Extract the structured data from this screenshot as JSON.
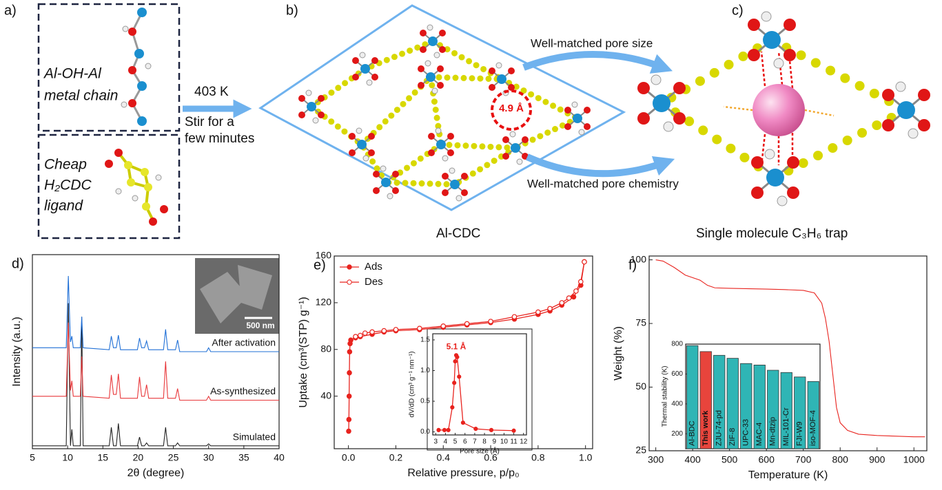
{
  "diagram": {
    "a": {
      "label": "a)",
      "chain": [
        "Al-OH-Al",
        "metal chain"
      ],
      "ligand": [
        "Cheap",
        "H₂CDC",
        "ligand"
      ]
    },
    "arrow": [
      "403 K",
      "Stir for a",
      "few minutes"
    ],
    "b": {
      "label": "b)",
      "pore": "4.9 Å",
      "name": "Al-CDC"
    },
    "c": {
      "label": "c)",
      "top": "Well-matched pore size",
      "bottom": "Well-matched pore chemistry",
      "name": "Single molecule C₃H₆ trap"
    }
  },
  "chart_data": [
    {
      "type": "line",
      "panel": "d)",
      "xlabel": "2θ (degree)",
      "ylabel": "Intensity (a.u.)",
      "inset_label": "500 nm",
      "xlim": [
        5,
        40
      ],
      "xticks": [
        5,
        10,
        15,
        20,
        25,
        30,
        35,
        40
      ],
      "ylim": [
        0,
        100
      ],
      "x": [
        5,
        9.8,
        10.1,
        10.4,
        10.6,
        10.8,
        11.8,
        12.0,
        12.2,
        15.9,
        16.2,
        16.5,
        16.9,
        17.2,
        17.5,
        19.9,
        20.2,
        20.5,
        20.9,
        21.2,
        21.5,
        23.6,
        23.9,
        24.2,
        25.3,
        25.6,
        25.9,
        29.7,
        30.0,
        30.3,
        40
      ],
      "series": [
        {
          "name": "Simulated",
          "color": "#222222",
          "values": [
            1.5,
            1.5,
            75,
            1.5,
            10,
            1.5,
            1.5,
            68,
            1.5,
            1.5,
            11,
            1.5,
            1.5,
            13,
            1.5,
            1.5,
            6,
            1.5,
            1.5,
            3,
            1.5,
            1.5,
            11,
            1.5,
            1.5,
            3,
            1.5,
            1.5,
            2.5,
            1.5,
            1.5
          ]
        },
        {
          "name": "As-synthesized",
          "color": "#e8373a",
          "values": [
            27,
            27,
            65,
            30,
            35,
            27,
            27,
            47.5,
            27,
            26,
            38,
            28,
            28,
            38.6,
            26,
            26,
            37,
            27,
            27,
            33,
            26,
            26,
            45,
            26,
            26,
            31,
            25,
            25,
            27,
            25,
            25
          ]
        },
        {
          "name": "After activation",
          "color": "#1f6fd6",
          "values": [
            52,
            52,
            89,
            55,
            58,
            52,
            52,
            68,
            52,
            51,
            58,
            52,
            52,
            58.5,
            51,
            51,
            57,
            52,
            52,
            55.5,
            51,
            51,
            61.5,
            51,
            51,
            56,
            50,
            50,
            52,
            50,
            50
          ]
        }
      ]
    },
    {
      "type": "scatter",
      "panel": "e)",
      "xlabel": "Relative pressure, p/p₀",
      "ylabel": "Uptake (cm³(STP) g⁻¹)",
      "legend": "upper left",
      "xlim": [
        -0.06,
        1.03
      ],
      "xticks": [
        {
          "value": 0,
          "label": "0.0"
        },
        0.2,
        0.4,
        0.6,
        0.8,
        {
          "value": 1,
          "label": "1.0"
        }
      ],
      "ylim": [
        -5,
        160
      ],
      "yticks": [
        40,
        80,
        120,
        160
      ],
      "series": [
        {
          "name": "Ads",
          "color": "#e8231e",
          "marker": "filled",
          "x": [
            0.001,
            0.002,
            0.003,
            0.004,
            0.005,
            0.007,
            0.01,
            0.03,
            0.05,
            0.1,
            0.15,
            0.2,
            0.3,
            0.4,
            0.5,
            0.6,
            0.7,
            0.8,
            0.85,
            0.9,
            0.95,
            0.98,
            0.995
          ],
          "values": [
            10,
            20,
            40,
            60,
            78,
            85,
            88,
            90,
            91,
            93,
            95,
            96,
            97,
            99,
            101,
            103,
            106,
            110,
            113,
            118,
            125,
            135,
            155
          ]
        },
        {
          "name": "Des",
          "color": "#e8231e",
          "marker": "open",
          "x": [
            0.995,
            0.98,
            0.96,
            0.93,
            0.9,
            0.85,
            0.8,
            0.7,
            0.6,
            0.5,
            0.4,
            0.3,
            0.2,
            0.15,
            0.1,
            0.07,
            0.05,
            0.03
          ],
          "values": [
            155,
            138,
            130,
            124,
            120,
            115,
            112,
            108,
            104,
            102,
            100,
            98,
            97,
            96,
            95,
            94,
            92,
            91
          ]
        }
      ]
    },
    {
      "type": "scatter",
      "xlabel": "Pore size (Å)",
      "ylabel": "dV/dD (cm³ g⁻¹ nm⁻¹)",
      "annotation": "5.1 Å",
      "xlim": [
        2.7,
        12.3
      ],
      "xticks": [
        3,
        4,
        5,
        6,
        7,
        8,
        9,
        10,
        11,
        12
      ],
      "ylim": [
        -0.05,
        1.6
      ],
      "yticks": [
        {
          "value": 0,
          "label": "0.0"
        },
        0.5,
        {
          "value": 1,
          "label": "1.0"
        },
        1.5
      ],
      "series": [
        {
          "color": "#e8231e",
          "marker": "filled",
          "x": [
            3.3,
            3.9,
            4.3,
            4.7,
            4.9,
            5.0,
            5.1,
            5.2,
            5.4,
            5.8,
            7.1,
            8.7,
            11
          ],
          "values": [
            0.03,
            0.03,
            0.03,
            0.4,
            0.8,
            1.15,
            1.25,
            1.22,
            0.9,
            0.15,
            0.05,
            0.03,
            0.02
          ]
        }
      ]
    },
    {
      "type": "line",
      "panel": "f)",
      "xlabel": "Temperature (K)",
      "ylabel": "Weight (%)",
      "xlim": [
        282,
        1035
      ],
      "xticks": [
        300,
        400,
        500,
        600,
        700,
        800,
        900,
        1000
      ],
      "ylim": [
        25,
        101.5
      ],
      "yticks": [
        25,
        50,
        75,
        100
      ],
      "series": [
        {
          "color": "#e8231e",
          "x": [
            300,
            320,
            350,
            380,
            420,
            440,
            460,
            500,
            600,
            650,
            700,
            730,
            750,
            760,
            770,
            780,
            790,
            800,
            820,
            850,
            900,
            1000,
            1030
          ],
          "values": [
            100,
            99.5,
            97,
            94,
            92,
            90,
            89,
            88.8,
            88.5,
            88.3,
            88,
            87,
            83,
            77,
            68,
            55,
            42,
            36,
            33,
            31.5,
            31,
            30.5,
            30.5
          ]
        }
      ]
    },
    {
      "type": "bar",
      "ylabel": "Thermal stability (K)",
      "ylim": [
        100,
        800
      ],
      "yticks": [
        200,
        400,
        600,
        800
      ],
      "categories": [
        "Al-BDC",
        "This work",
        "ZJU-74-pd",
        "ZIF-8",
        "UPC-33",
        "MAC-4",
        "Mn-dtzip",
        "MIL-101-Cr",
        "FJI-W9",
        "iso-MOF-4"
      ],
      "values": [
        790,
        750,
        725,
        705,
        670,
        660,
        625,
        610,
        580,
        550
      ],
      "colors": [
        "#2fb5b5",
        "#e8443c",
        "#2fb5b5",
        "#2fb5b5",
        "#2fb5b5",
        "#2fb5b5",
        "#2fb5b5",
        "#2fb5b5",
        "#2fb5b5",
        "#2fb5b5"
      ]
    }
  ]
}
